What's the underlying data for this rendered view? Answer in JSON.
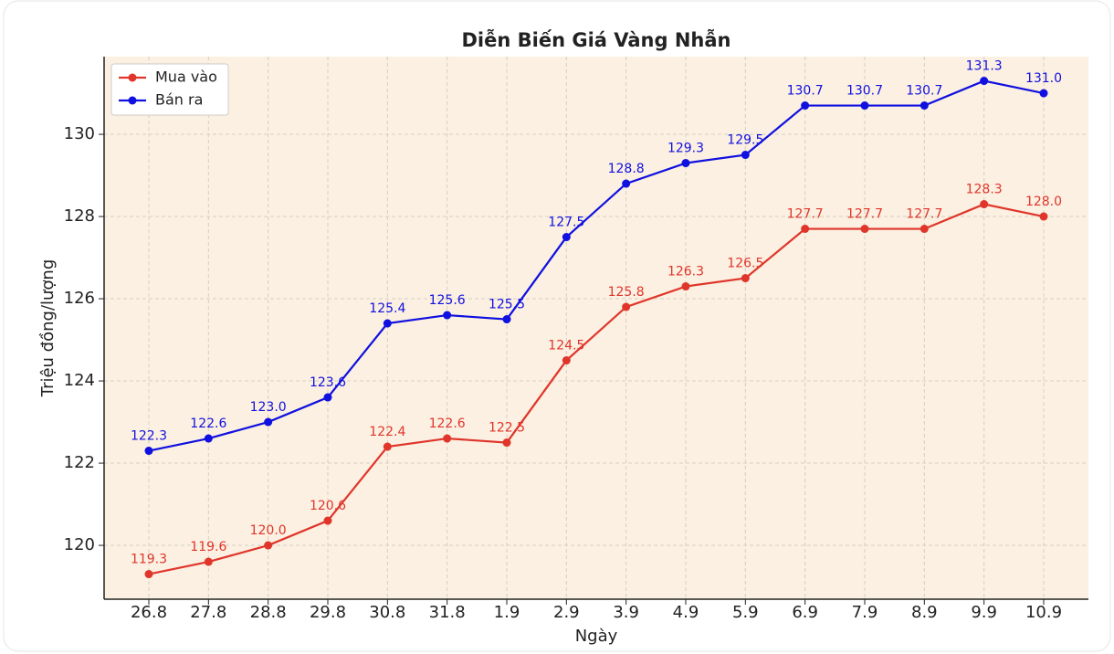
{
  "chart_data": {
    "type": "line",
    "title": "Diễn Biến Giá Vàng Nhẫn",
    "x_label": "Ngày",
    "y_label": "Triệu đồng/lượng",
    "categories": [
      "26.8",
      "27.8",
      "28.8",
      "29.8",
      "30.8",
      "31.8",
      "1.9",
      "2.9",
      "3.9",
      "4.9",
      "5.9",
      "6.9",
      "7.9",
      "8.9",
      "9.9",
      "10.9"
    ],
    "series": [
      {
        "name": "Mua vào",
        "color": "#e0352b",
        "values": [
          119.3,
          119.6,
          120.0,
          120.6,
          122.4,
          122.6,
          122.5,
          124.5,
          125.8,
          126.3,
          126.5,
          127.7,
          127.7,
          127.7,
          128.3,
          128.0
        ],
        "value_labels": [
          "119.3",
          "119.6",
          "120.0",
          "120.6",
          "122.4",
          "122.6",
          "122.5",
          "124.5",
          "125.8",
          "126.3",
          "126.5",
          "127.7",
          "127.7",
          "127.7",
          "128.3",
          "128.0"
        ]
      },
      {
        "name": "Bán ra",
        "color": "#1010e0",
        "values": [
          122.3,
          122.6,
          123.0,
          123.6,
          125.4,
          125.6,
          125.5,
          127.5,
          128.8,
          129.3,
          129.5,
          130.7,
          130.7,
          130.7,
          131.3,
          131.0
        ],
        "value_labels": [
          "122.3",
          "122.6",
          "123.0",
          "123.6",
          "125.4",
          "125.6",
          "125.5",
          "127.5",
          "128.8",
          "129.3",
          "129.5",
          "130.7",
          "130.7",
          "130.7",
          "131.3",
          "131.0"
        ]
      }
    ],
    "ylim": [
      118.69,
      131.89
    ],
    "yticks": [
      120,
      122,
      124,
      126,
      128,
      130
    ],
    "grid": true,
    "legend": "upper left"
  }
}
